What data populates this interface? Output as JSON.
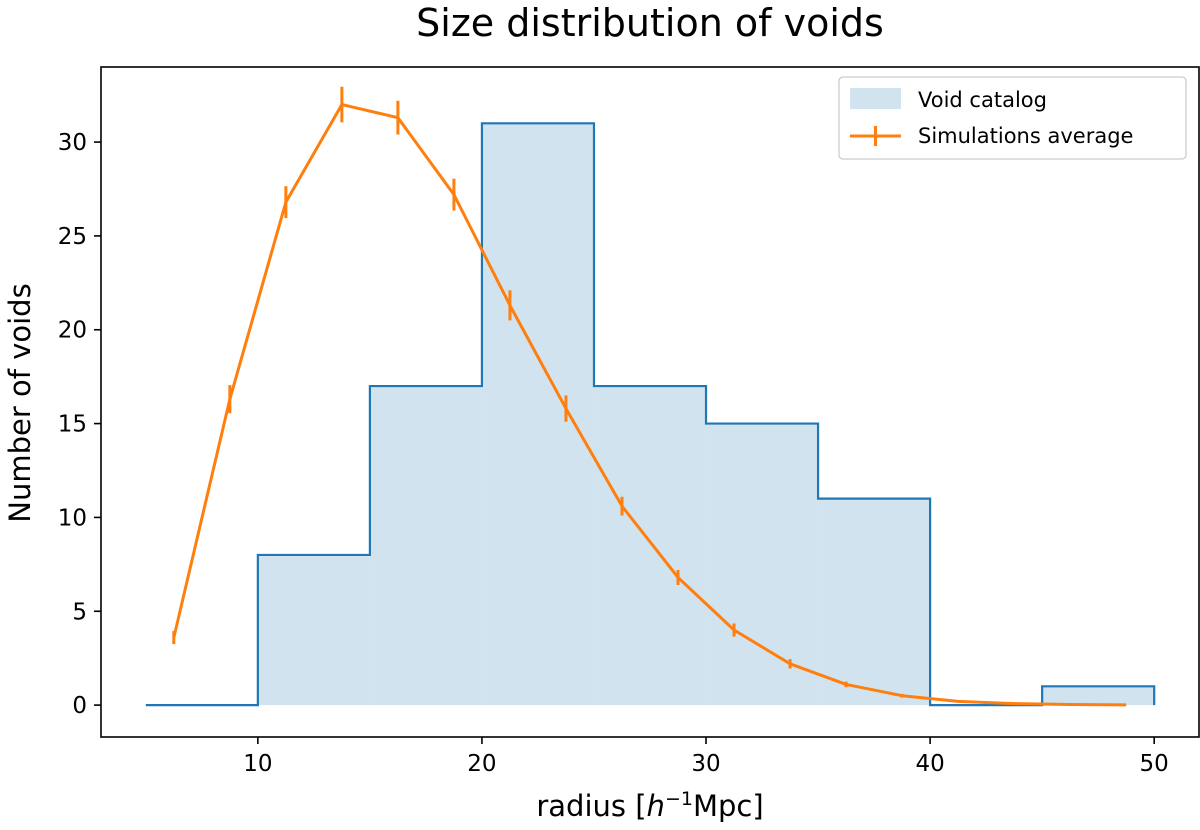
{
  "chart_data": {
    "type": "histogram_with_line",
    "title": "Size distribution of voids",
    "xlabel": {
      "prefix": "radius [",
      "base": "h",
      "sup": "−1",
      "unit": "Mpc]"
    },
    "ylabel": "Number of voids",
    "xlim": [
      3,
      52
    ],
    "ylim": [
      -1.7,
      34
    ],
    "xticks": [
      10,
      20,
      30,
      40,
      50
    ],
    "yticks": [
      0,
      5,
      10,
      15,
      20,
      25,
      30
    ],
    "legend_position": "top-right",
    "colors": {
      "histogram_edge": "#1f77b4",
      "histogram_fill": "#d2e3f0",
      "line": "#ff7f0e",
      "axes": "#000000",
      "legend_border": "#cccccc"
    },
    "histogram": {
      "name": "Void catalog",
      "bin_edges": [
        5,
        10,
        15,
        20,
        25,
        30,
        35,
        40,
        45,
        50
      ],
      "counts": [
        0,
        8,
        17,
        31,
        17,
        15,
        11,
        0,
        1
      ]
    },
    "series": [
      {
        "name": "Simulations average",
        "x": [
          6.25,
          8.75,
          11.25,
          13.75,
          16.25,
          18.75,
          21.25,
          23.75,
          26.25,
          28.75,
          31.25,
          33.75,
          36.25,
          38.75,
          41.25,
          43.75,
          46.25,
          48.75
        ],
        "y": [
          3.6,
          16.3,
          26.8,
          32.0,
          31.3,
          27.2,
          21.3,
          15.8,
          10.6,
          6.8,
          4.0,
          2.2,
          1.1,
          0.5,
          0.2,
          0.08,
          0.03,
          0.01
        ],
        "err": [
          0.35,
          0.75,
          0.85,
          0.95,
          0.9,
          0.85,
          0.8,
          0.7,
          0.5,
          0.4,
          0.35,
          0.25,
          0.15,
          0.1,
          0.05,
          0.03,
          0.02,
          0.01
        ]
      }
    ]
  }
}
